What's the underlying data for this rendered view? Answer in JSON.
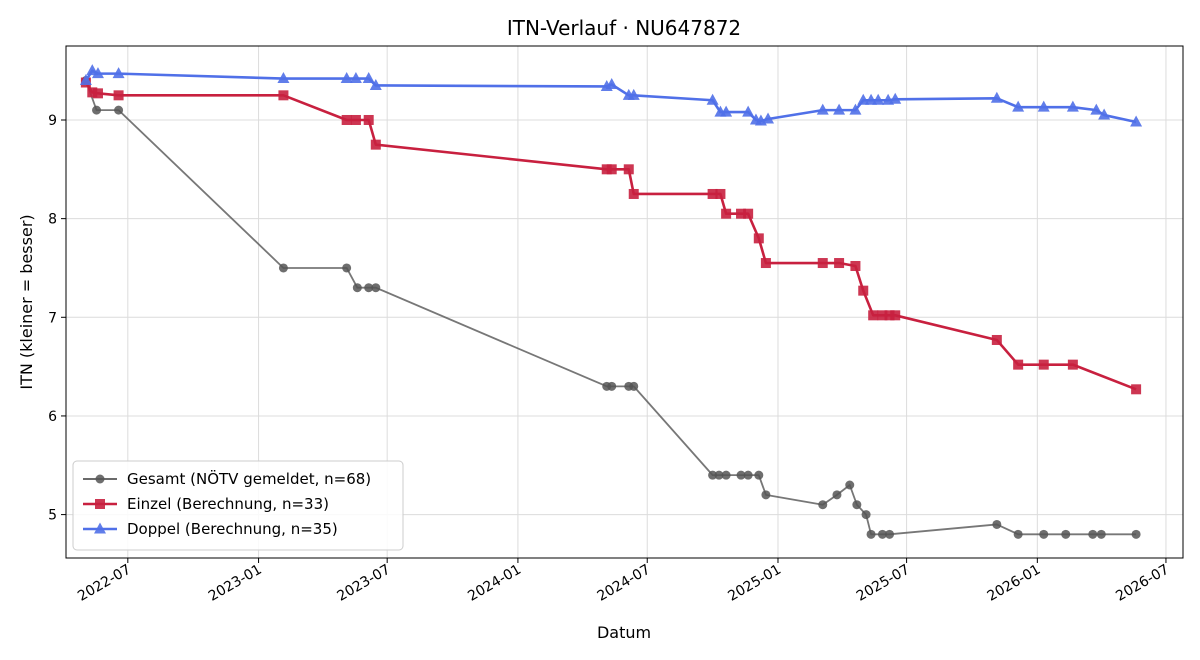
{
  "chart_data": {
    "type": "line",
    "title": "ITN-Verlauf · NU647872",
    "xlabel": "Datum",
    "ylabel": "ITN  (kleiner = besser)",
    "xlim": [
      "2022-04-05",
      "2026-07-25"
    ],
    "ylim": [
      4.56,
      9.75
    ],
    "x_ticks": [
      "2022-07",
      "2023-01",
      "2023-07",
      "2024-01",
      "2024-07",
      "2025-01",
      "2025-07",
      "2026-01",
      "2026-07"
    ],
    "y_ticks": [
      5,
      6,
      7,
      8,
      9
    ],
    "grid": true,
    "legend_position": "lower-left",
    "series": [
      {
        "name": "Gesamt (NÖTV gemeldet, n=68)",
        "color": "#555555",
        "marker": "circle",
        "points": [
          [
            "2022-05-03",
            9.4
          ],
          [
            "2022-05-18",
            9.1
          ],
          [
            "2022-06-18",
            9.1
          ],
          [
            "2023-02-05",
            7.5
          ],
          [
            "2023-05-05",
            7.5
          ],
          [
            "2023-05-20",
            7.3
          ],
          [
            "2023-06-05",
            7.3
          ],
          [
            "2023-06-15",
            7.3
          ],
          [
            "2024-05-05",
            6.3
          ],
          [
            "2024-05-12",
            6.3
          ],
          [
            "2024-06-05",
            6.3
          ],
          [
            "2024-06-12",
            6.3
          ],
          [
            "2024-10-01",
            5.4
          ],
          [
            "2024-10-10",
            5.4
          ],
          [
            "2024-10-20",
            5.4
          ],
          [
            "2024-11-10",
            5.4
          ],
          [
            "2024-11-20",
            5.4
          ],
          [
            "2024-12-05",
            5.4
          ],
          [
            "2024-12-15",
            5.2
          ],
          [
            "2025-03-05",
            5.1
          ],
          [
            "2025-03-25",
            5.2
          ],
          [
            "2025-04-12",
            5.3
          ],
          [
            "2025-04-22",
            5.1
          ],
          [
            "2025-05-05",
            5.0
          ],
          [
            "2025-05-12",
            4.8
          ],
          [
            "2025-05-28",
            4.8
          ],
          [
            "2025-06-07",
            4.8
          ],
          [
            "2025-11-05",
            4.9
          ],
          [
            "2025-12-05",
            4.8
          ],
          [
            "2026-01-10",
            4.8
          ],
          [
            "2026-02-10",
            4.8
          ],
          [
            "2026-03-20",
            4.8
          ],
          [
            "2026-04-01",
            4.8
          ],
          [
            "2026-05-20",
            4.8
          ]
        ]
      },
      {
        "name": "Einzel (Berechnung, n=33)",
        "color": "#c8203f",
        "marker": "square",
        "points": [
          [
            "2022-05-03",
            9.38
          ],
          [
            "2022-05-12",
            9.28
          ],
          [
            "2022-05-20",
            9.27
          ],
          [
            "2022-06-18",
            9.25
          ],
          [
            "2023-02-05",
            9.25
          ],
          [
            "2023-05-05",
            9.0
          ],
          [
            "2023-05-18",
            9.0
          ],
          [
            "2023-06-05",
            9.0
          ],
          [
            "2023-06-15",
            8.75
          ],
          [
            "2024-05-05",
            8.5
          ],
          [
            "2024-05-12",
            8.5
          ],
          [
            "2024-06-05",
            8.5
          ],
          [
            "2024-06-12",
            8.25
          ],
          [
            "2024-10-01",
            8.25
          ],
          [
            "2024-10-12",
            8.25
          ],
          [
            "2024-10-20",
            8.05
          ],
          [
            "2024-11-10",
            8.05
          ],
          [
            "2024-11-20",
            8.05
          ],
          [
            "2024-12-05",
            7.8
          ],
          [
            "2024-12-15",
            7.55
          ],
          [
            "2025-03-05",
            7.55
          ],
          [
            "2025-03-28",
            7.55
          ],
          [
            "2025-04-20",
            7.52
          ],
          [
            "2025-05-01",
            7.27
          ],
          [
            "2025-05-15",
            7.02
          ],
          [
            "2025-05-28",
            7.02
          ],
          [
            "2025-06-07",
            7.02
          ],
          [
            "2025-06-15",
            7.02
          ],
          [
            "2025-11-05",
            6.77
          ],
          [
            "2025-12-05",
            6.52
          ],
          [
            "2026-01-10",
            6.52
          ],
          [
            "2026-02-20",
            6.52
          ],
          [
            "2026-05-20",
            6.27
          ]
        ]
      },
      {
        "name": "Doppel (Berechnung, n=35)",
        "color": "#5070e8",
        "marker": "triangle",
        "points": [
          [
            "2022-05-03",
            9.4
          ],
          [
            "2022-05-12",
            9.5
          ],
          [
            "2022-05-20",
            9.47
          ],
          [
            "2022-06-18",
            9.47
          ],
          [
            "2023-02-05",
            9.42
          ],
          [
            "2023-05-05",
            9.42
          ],
          [
            "2023-05-18",
            9.42
          ],
          [
            "2023-06-05",
            9.42
          ],
          [
            "2023-06-15",
            9.35
          ],
          [
            "2024-05-05",
            9.34
          ],
          [
            "2024-05-12",
            9.36
          ],
          [
            "2024-06-05",
            9.25
          ],
          [
            "2024-06-12",
            9.25
          ],
          [
            "2024-10-01",
            9.2
          ],
          [
            "2024-10-12",
            9.08
          ],
          [
            "2024-10-20",
            9.08
          ],
          [
            "2024-11-20",
            9.08
          ],
          [
            "2024-12-01",
            9.0
          ],
          [
            "2024-12-08",
            8.99
          ],
          [
            "2024-12-18",
            9.01
          ],
          [
            "2025-03-05",
            9.1
          ],
          [
            "2025-03-28",
            9.1
          ],
          [
            "2025-04-20",
            9.1
          ],
          [
            "2025-05-01",
            9.2
          ],
          [
            "2025-05-12",
            9.2
          ],
          [
            "2025-05-22",
            9.2
          ],
          [
            "2025-06-05",
            9.2
          ],
          [
            "2025-06-15",
            9.21
          ],
          [
            "2025-11-05",
            9.22
          ],
          [
            "2025-12-05",
            9.13
          ],
          [
            "2026-01-10",
            9.13
          ],
          [
            "2026-02-20",
            9.13
          ],
          [
            "2026-03-25",
            9.1
          ],
          [
            "2026-04-05",
            9.05
          ],
          [
            "2026-05-20",
            8.98
          ]
        ]
      }
    ]
  }
}
